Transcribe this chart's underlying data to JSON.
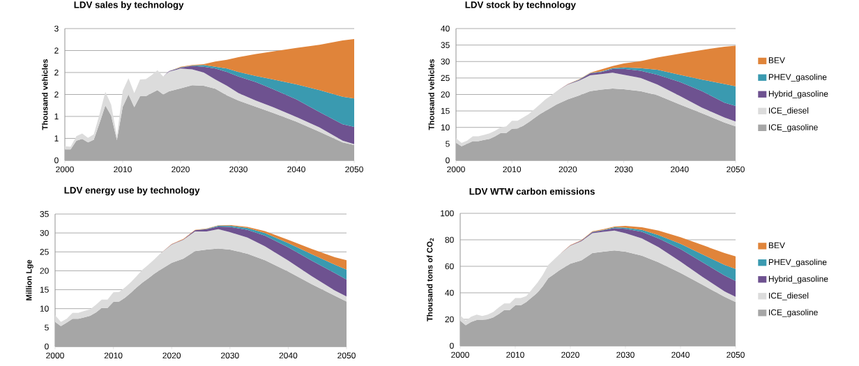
{
  "chart_data": [
    {
      "type": "area",
      "stacked": true,
      "title": "LDV sales by technology",
      "ylabel": "Thousand vehicles",
      "xlim": [
        2000,
        2050
      ],
      "xticks": [
        2000,
        2010,
        2020,
        2030,
        2040,
        2050
      ],
      "ylim": [
        0,
        3
      ],
      "yticks": [
        0,
        {
          "value": 0.5,
          "label": "1"
        },
        1,
        {
          "value": 1.5,
          "label": "2"
        },
        2,
        {
          "value": 2.5,
          "label": "2"
        },
        3
      ],
      "grid": "y",
      "x": [
        2000,
        2001,
        2002,
        2003,
        2004,
        2005,
        2006,
        2007,
        2008,
        2009,
        2010,
        2011,
        2012,
        2013,
        2014,
        2015,
        2016,
        2017,
        2018,
        2020,
        2022,
        2024,
        2026,
        2028,
        2030,
        2033,
        2036,
        2040,
        2044,
        2048,
        2050
      ],
      "series": [
        {
          "color": "#a6a6a6",
          "values": [
            0.25,
            0.25,
            0.45,
            0.49,
            0.41,
            0.47,
            0.85,
            1.25,
            1.02,
            0.46,
            1.22,
            1.5,
            1.21,
            1.46,
            1.46,
            1.53,
            1.6,
            1.5,
            1.57,
            1.64,
            1.71,
            1.7,
            1.63,
            1.48,
            1.36,
            1.22,
            1.08,
            0.88,
            0.65,
            0.41,
            0.35
          ]
        },
        {
          "color": "#dcdcdc",
          "values": [
            0.07,
            0.06,
            0.1,
            0.12,
            0.1,
            0.12,
            0.2,
            0.31,
            0.25,
            0.09,
            0.36,
            0.37,
            0.32,
            0.38,
            0.39,
            0.41,
            0.45,
            0.41,
            0.45,
            0.45,
            0.36,
            0.3,
            0.21,
            0.22,
            0.17,
            0.14,
            0.13,
            0.11,
            0.1,
            0.04,
            0.02
          ]
        },
        {
          "color": "#6e5290",
          "values": [
            0,
            0,
            0,
            0,
            0,
            0,
            0,
            0,
            0,
            0,
            0,
            0,
            0,
            0,
            0,
            0,
            0,
            0,
            0.01,
            0.02,
            0.08,
            0.13,
            0.25,
            0.31,
            0.38,
            0.42,
            0.41,
            0.4,
            0.35,
            0.37,
            0.39
          ]
        },
        {
          "color": "#3a9ab0",
          "values": [
            0,
            0,
            0,
            0,
            0,
            0,
            0,
            0,
            0,
            0,
            0,
            0,
            0,
            0,
            0,
            0,
            0,
            0,
            0,
            0.01,
            0.01,
            0.04,
            0.04,
            0.08,
            0.1,
            0.14,
            0.22,
            0.34,
            0.5,
            0.63,
            0.65
          ]
        },
        {
          "color": "#e0843a",
          "values": [
            0,
            0,
            0,
            0,
            0,
            0,
            0,
            0,
            0,
            0,
            0,
            0,
            0,
            0,
            0,
            0,
            0,
            0,
            0,
            0.01,
            0.01,
            0.02,
            0.12,
            0.2,
            0.34,
            0.5,
            0.64,
            0.83,
            1.03,
            1.28,
            1.35
          ]
        }
      ]
    },
    {
      "type": "area",
      "stacked": true,
      "title": "LDV stock by technology",
      "ylabel": "Thousand vehicles",
      "xlim": [
        2000,
        2050
      ],
      "xticks": [
        2000,
        2010,
        2020,
        2030,
        2040,
        2050
      ],
      "ylim": [
        0,
        40
      ],
      "yticks": [
        0,
        5,
        10,
        15,
        20,
        25,
        30,
        35,
        40
      ],
      "grid": "y",
      "legend": "right",
      "x": [
        2000,
        2001,
        2002,
        2003,
        2004,
        2005,
        2006,
        2007,
        2008,
        2009,
        2010,
        2011,
        2012,
        2013,
        2014,
        2015,
        2016,
        2017,
        2018,
        2020,
        2022,
        2024,
        2026,
        2028,
        2030,
        2033,
        2036,
        2040,
        2044,
        2048,
        2050
      ],
      "series": [
        {
          "name": "ICE_gasoline",
          "color": "#a6a6a6",
          "values": [
            5.3,
            4.3,
            5.0,
            5.8,
            5.8,
            6.2,
            6.5,
            7.3,
            8.3,
            8.3,
            9.6,
            9.7,
            10.5,
            11.6,
            12.8,
            14.0,
            15.0,
            16.0,
            17.0,
            18.5,
            19.7,
            21.0,
            21.5,
            21.8,
            21.6,
            21.0,
            19.8,
            17.0,
            14.3,
            11.5,
            10.3
          ]
        },
        {
          "name": "ICE_diesel",
          "color": "#dcdcdc",
          "values": [
            1.4,
            1.0,
            1.0,
            1.5,
            1.5,
            1.5,
            1.7,
            1.7,
            1.7,
            2.0,
            2.4,
            2.3,
            2.5,
            2.4,
            2.7,
            3.0,
            3.5,
            3.7,
            4.0,
            4.5,
            4.5,
            4.8,
            4.7,
            4.8,
            4.4,
            4.0,
            3.2,
            2.6,
            1.7,
            1.5,
            1.5
          ]
        },
        {
          "name": "Hybrid_gasoline",
          "color": "#6e5290",
          "values": [
            0,
            0,
            0,
            0,
            0,
            0,
            0,
            0,
            0,
            0,
            0,
            0,
            0,
            0,
            0,
            0,
            0,
            0,
            0,
            0.1,
            0.2,
            0.6,
            0.6,
            1.1,
            1.8,
            2.2,
            3.0,
            4.2,
            5.0,
            4.5,
            4.7
          ]
        },
        {
          "name": "PHEV_gasoline",
          "color": "#3a9ab0",
          "values": [
            0,
            0,
            0,
            0,
            0,
            0,
            0,
            0,
            0,
            0,
            0,
            0,
            0,
            0,
            0,
            0,
            0,
            0,
            0,
            0,
            0.1,
            0.1,
            0.2,
            0.3,
            0.4,
            0.8,
            1.5,
            2.2,
            3.5,
            5.7,
            6.0
          ]
        },
        {
          "name": "BEV",
          "color": "#e0843a",
          "values": [
            0,
            0,
            0,
            0,
            0,
            0,
            0,
            0,
            0,
            0,
            0,
            0,
            0,
            0,
            0,
            0,
            0,
            0,
            0,
            0.1,
            0.1,
            0.1,
            0.6,
            0.6,
            1.2,
            2.1,
            3.7,
            6.4,
            9.0,
            11.3,
            12.3
          ]
        }
      ]
    },
    {
      "type": "area",
      "stacked": true,
      "title": "LDV energy use by technology",
      "ylabel": "Million Lge",
      "xlim": [
        2000,
        2050
      ],
      "xticks": [
        2000,
        2010,
        2020,
        2030,
        2040,
        2050
      ],
      "ylim": [
        0,
        35
      ],
      "yticks": [
        0,
        5,
        10,
        15,
        20,
        25,
        30,
        35
      ],
      "grid": "y",
      "x": [
        2000,
        2001,
        2002,
        2003,
        2004,
        2005,
        2006,
        2007,
        2008,
        2009,
        2010,
        2011,
        2012,
        2013,
        2014,
        2015,
        2016,
        2017,
        2018,
        2020,
        2022,
        2024,
        2026,
        2028,
        2030,
        2033,
        2036,
        2040,
        2044,
        2048,
        2050
      ],
      "series": [
        {
          "color": "#a6a6a6",
          "values": [
            6.5,
            5.4,
            6.3,
            7.3,
            7.3,
            7.7,
            8.1,
            9.0,
            10.2,
            10.2,
            11.8,
            11.9,
            12.9,
            14.2,
            15.6,
            16.9,
            18.0,
            19.2,
            20.2,
            22.1,
            23.2,
            25.2,
            25.6,
            25.9,
            25.6,
            24.5,
            22.8,
            19.8,
            16.5,
            13.4,
            11.9
          ]
        },
        {
          "color": "#dcdcdc",
          "values": [
            1.8,
            1.1,
            1.0,
            1.6,
            1.6,
            1.7,
            1.7,
            2.0,
            2.2,
            2.2,
            2.5,
            2.5,
            2.7,
            2.8,
            3.0,
            3.4,
            3.6,
            3.8,
            4.3,
            4.8,
            5.0,
            5.2,
            4.8,
            5.1,
            4.6,
            4.3,
            3.7,
            2.9,
            2.1,
            1.4,
            1.3
          ]
        },
        {
          "color": "#6e5290",
          "values": [
            0,
            0,
            0,
            0,
            0,
            0,
            0,
            0,
            0,
            0,
            0,
            0,
            0,
            0,
            0,
            0,
            0,
            0,
            0,
            0.1,
            0.1,
            0.3,
            0.6,
            0.7,
            1.4,
            2.0,
            2.8,
            3.5,
            4.1,
            4.6,
            4.5
          ]
        },
        {
          "color": "#3a9ab0",
          "values": [
            0,
            0,
            0,
            0,
            0,
            0,
            0,
            0,
            0,
            0,
            0,
            0,
            0,
            0,
            0,
            0,
            0,
            0,
            0,
            0,
            0,
            0,
            0.1,
            0.2,
            0.3,
            0.5,
            0.7,
            1.1,
            1.7,
            2.2,
            2.6
          ]
        },
        {
          "color": "#e0843a",
          "values": [
            0,
            0,
            0,
            0,
            0,
            0,
            0,
            0,
            0,
            0,
            0,
            0,
            0,
            0,
            0,
            0,
            0,
            0,
            0,
            0.1,
            0.1,
            0.1,
            0.1,
            0.1,
            0.2,
            0.3,
            0.5,
            0.9,
            1.4,
            2.0,
            2.5
          ]
        }
      ]
    },
    {
      "type": "area",
      "stacked": true,
      "title": "LDV  WTW carbon  emissions",
      "ylabel": "Thousand tons of CO$_{2}$",
      "xlim": [
        2000,
        2050
      ],
      "xticks": [
        2000,
        2010,
        2020,
        2030,
        2040,
        2050
      ],
      "ylim": [
        0,
        100
      ],
      "yticks": [
        0,
        20,
        40,
        60,
        80,
        100
      ],
      "grid": "y",
      "legend": "right",
      "x": [
        2000,
        2001,
        2002,
        2003,
        2004,
        2005,
        2006,
        2007,
        2008,
        2009,
        2010,
        2011,
        2012,
        2013,
        2014,
        2015,
        2016,
        2017,
        2018,
        2020,
        2022,
        2024,
        2026,
        2028,
        2030,
        2033,
        2036,
        2040,
        2044,
        2048,
        2050
      ],
      "series": [
        {
          "name": "ICE_gasoline",
          "color": "#a6a6a6",
          "values": [
            19,
            15.5,
            18,
            19.5,
            19.5,
            20,
            21.5,
            24,
            27,
            27,
            30.5,
            30.5,
            33,
            36.5,
            40,
            45,
            51,
            54,
            57,
            62,
            64.5,
            70,
            71,
            72,
            71,
            68,
            63,
            55,
            46,
            37,
            33
          ]
        },
        {
          "name": "ICE_diesel",
          "color": "#dcdcdc",
          "values": [
            4,
            3.5,
            4,
            4,
            3,
            3.5,
            4,
            5,
            5,
            5,
            5.5,
            5.5,
            4.5,
            6,
            7.5,
            8.5,
            10,
            11,
            12,
            13.5,
            14.5,
            15,
            15,
            15,
            14,
            13,
            11.5,
            8.5,
            6,
            4,
            4
          ]
        },
        {
          "name": "Hybrid_gasoline",
          "color": "#6e5290",
          "values": [
            0,
            0,
            0,
            0,
            0,
            0,
            0,
            0,
            0,
            0,
            0,
            0,
            0,
            0,
            0,
            0,
            0,
            0,
            0,
            0.3,
            0.5,
            0.8,
            1.2,
            1.8,
            3.3,
            5,
            6.5,
            9.5,
            11,
            12,
            12
          ]
        },
        {
          "name": "PHEV_gasoline",
          "color": "#3a9ab0",
          "values": [
            0,
            0,
            0,
            0,
            0,
            0,
            0,
            0,
            0,
            0,
            0,
            0,
            0,
            0,
            0,
            0,
            0,
            0,
            0,
            0,
            0,
            0.3,
            0.3,
            0.7,
            0.9,
            1.5,
            2.5,
            4,
            6,
            8,
            9
          ]
        },
        {
          "name": "BEV",
          "color": "#e0843a",
          "values": [
            0,
            0,
            0,
            0,
            0,
            0,
            0,
            0,
            0,
            0,
            0,
            0,
            0,
            0,
            0,
            0,
            0,
            0,
            0,
            0.2,
            0.2,
            0.4,
            0.5,
            0.5,
            1.3,
            2,
            3.5,
            5,
            7,
            9,
            9.5
          ]
        }
      ]
    }
  ]
}
